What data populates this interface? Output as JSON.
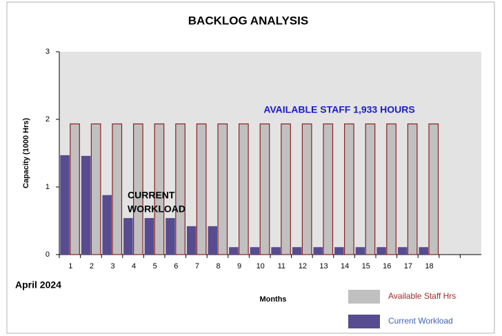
{
  "chart_data": {
    "type": "bar",
    "title": "BACKLOG ANALYSIS",
    "y_label": "Capacity (1000 Hrs)",
    "x_label": "Months",
    "subtitle": "April 2024",
    "categories": [
      "1",
      "2",
      "3",
      "4",
      "5",
      "6",
      "7",
      "8",
      "9",
      "10",
      "11",
      "12",
      "13",
      "14",
      "15",
      "16",
      "17",
      "18",
      null,
      null
    ],
    "series": [
      {
        "name": "Current Workload",
        "color": "#574c8f",
        "legend_color": "#3f63b5",
        "values": [
          1.47,
          1.46,
          0.88,
          0.54,
          0.54,
          0.54,
          0.42,
          0.42,
          0.11,
          0.11,
          0.11,
          0.11,
          0.11,
          0.11,
          0.11,
          0.11,
          0.11,
          0.11,
          null,
          null
        ]
      },
      {
        "name": "Available Staff Hrs",
        "color": "#c0c0c0",
        "legend_color": "#9c2a2a",
        "values": [
          1.933,
          1.933,
          1.933,
          1.933,
          1.933,
          1.933,
          1.933,
          1.933,
          1.933,
          1.933,
          1.933,
          1.933,
          1.933,
          1.933,
          1.933,
          1.933,
          1.933,
          1.933,
          null,
          null
        ]
      }
    ],
    "ylim": [
      0,
      3
    ],
    "yticks": [
      0,
      1,
      2,
      3
    ],
    "grid": false,
    "annotations": [
      {
        "lines": [
          "AVAILABLE STAFF 1,933 HOURS"
        ],
        "color": "#1a1acc"
      },
      {
        "lines": [
          "CURRENT",
          "WORKLOAD"
        ],
        "color": "#000000"
      }
    ],
    "legend": "bottom-right"
  }
}
